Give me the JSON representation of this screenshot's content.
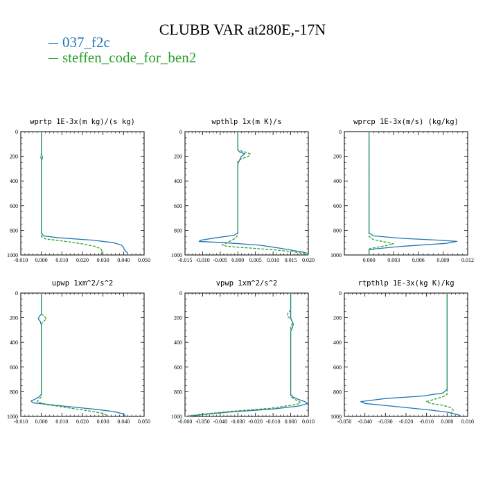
{
  "title": "CLUBB VAR at280E,-17N",
  "legend": [
    {
      "label": "037_f2c",
      "color": "#1f77b4"
    },
    {
      "label": "steffen_code_for_ben2",
      "color": "#2ca02c"
    }
  ],
  "chart_data": [
    {
      "type": "line",
      "title": "wprtp  1E-3x(m kg)/(s kg)",
      "xlim": [
        -0.01,
        0.05
      ],
      "ylim": [
        1000,
        0
      ],
      "xticks": [
        -0.01,
        0.0,
        0.01,
        0.02,
        0.03,
        0.04,
        0.05
      ],
      "xtick_labels": [
        "-0.010",
        "0.000",
        "0.010",
        "0.020",
        "0.030",
        "0.040",
        "0.050"
      ],
      "yticks": [
        0,
        200,
        400,
        600,
        800,
        1000
      ],
      "ytick_labels": [
        "0",
        "200",
        "400",
        "600",
        "800",
        "1000"
      ],
      "series": [
        {
          "name": "037_f2c",
          "points": [
            [
              0,
              0
            ],
            [
              0,
              190
            ],
            [
              0.0005,
              200
            ],
            [
              0.0005,
              220
            ],
            [
              0,
              230
            ],
            [
              0,
              820
            ],
            [
              0.001,
              845
            ],
            [
              0.008,
              860
            ],
            [
              0.025,
              880
            ],
            [
              0.035,
              900
            ],
            [
              0.039,
              920
            ],
            [
              0.04,
              940
            ],
            [
              0.0405,
              960
            ],
            [
              0.042,
              985
            ],
            [
              0.042,
              1000
            ]
          ]
        },
        {
          "name": "steffen_code_for_ben2",
          "points": [
            [
              0,
              0
            ],
            [
              0,
              180
            ],
            [
              -0.0005,
              200
            ],
            [
              0,
              220
            ],
            [
              0,
              850
            ],
            [
              0.002,
              870
            ],
            [
              0.012,
              890
            ],
            [
              0.02,
              910
            ],
            [
              0.026,
              930
            ],
            [
              0.029,
              950
            ],
            [
              0.0295,
              970
            ],
            [
              0.029,
              1000
            ]
          ]
        }
      ]
    },
    {
      "type": "line",
      "title": "wpthlp  1x(m K)/s",
      "xlim": [
        -0.015,
        0.02
      ],
      "ylim": [
        1000,
        0
      ],
      "xticks": [
        -0.015,
        -0.01,
        -0.005,
        0.0,
        0.005,
        0.01,
        0.015,
        0.02
      ],
      "xtick_labels": [
        "-0.015",
        "-0.010",
        "-0.005",
        "0.000",
        "0.005",
        "0.010",
        "0.015",
        "0.020"
      ],
      "yticks": [
        0,
        200,
        400,
        600,
        800,
        1000
      ],
      "ytick_labels": [
        "0",
        "200",
        "400",
        "600",
        "800",
        "1000"
      ],
      "series": [
        {
          "name": "037_f2c",
          "points": [
            [
              0,
              0
            ],
            [
              0,
              150
            ],
            [
              0.0005,
              165
            ],
            [
              0.002,
              180
            ],
            [
              0.001,
              200
            ],
            [
              0.0005,
              230
            ],
            [
              0,
              260
            ],
            [
              0,
              820
            ],
            [
              -0.001,
              840
            ],
            [
              -0.006,
              860
            ],
            [
              -0.0105,
              880
            ],
            [
              -0.011,
              890
            ],
            [
              -0.004,
              900
            ],
            [
              0.006,
              920
            ],
            [
              0.012,
              945
            ],
            [
              0.016,
              965
            ],
            [
              0.019,
              980
            ],
            [
              0.02,
              990
            ],
            [
              0.02,
              1000
            ]
          ]
        },
        {
          "name": "steffen_code_for_ben2",
          "points": [
            [
              0,
              0
            ],
            [
              0,
              150
            ],
            [
              0.002,
              165
            ],
            [
              0.0035,
              180
            ],
            [
              0.003,
              200
            ],
            [
              0.001,
              220
            ],
            [
              0,
              240
            ],
            [
              0,
              840
            ],
            [
              -0.001,
              870
            ],
            [
              -0.003,
              900
            ],
            [
              -0.0045,
              920
            ],
            [
              -0.003,
              930
            ],
            [
              0.004,
              945
            ],
            [
              0.011,
              960
            ],
            [
              0.016,
              975
            ],
            [
              0.019,
              990
            ],
            [
              0.02,
              1000
            ]
          ]
        }
      ]
    },
    {
      "type": "line",
      "title": "wprcp  1E-3x(m/s) (kg/kg)",
      "xlim": [
        -0.003,
        0.012
      ],
      "ylim": [
        1000,
        0
      ],
      "xticks": [
        0.0,
        0.003,
        0.006,
        0.009,
        0.012
      ],
      "xtick_labels": [
        "0.000",
        "0.003",
        "0.006",
        "0.009",
        "0.012"
      ],
      "yticks": [
        0,
        200,
        400,
        600,
        800,
        1000
      ],
      "ytick_labels": [
        "0",
        "200",
        "400",
        "600",
        "800",
        "1000"
      ],
      "series": [
        {
          "name": "037_f2c",
          "points": [
            [
              0,
              0
            ],
            [
              0,
              820
            ],
            [
              0.0005,
              845
            ],
            [
              0.004,
              865
            ],
            [
              0.0085,
              880
            ],
            [
              0.0107,
              890
            ],
            [
              0.0095,
              905
            ],
            [
              0.004,
              930
            ],
            [
              0.0008,
              950
            ],
            [
              0,
              960
            ],
            [
              0,
              1000
            ]
          ]
        },
        {
          "name": "steffen_code_for_ben2",
          "points": [
            [
              0,
              0
            ],
            [
              0,
              850
            ],
            [
              0.0005,
              875
            ],
            [
              0.002,
              895
            ],
            [
              0.003,
              910
            ],
            [
              0.002,
              925
            ],
            [
              0.0008,
              940
            ],
            [
              0,
              950
            ],
            [
              0,
              1000
            ]
          ]
        }
      ]
    },
    {
      "type": "line",
      "title": "upwp  1xm^2/s^2",
      "xlim": [
        -0.01,
        0.05
      ],
      "ylim": [
        1000,
        0
      ],
      "xticks": [
        -0.01,
        0.0,
        0.01,
        0.02,
        0.03,
        0.04,
        0.05
      ],
      "xtick_labels": [
        "-0.010",
        "0.000",
        "0.010",
        "0.020",
        "0.030",
        "0.040",
        "0.050"
      ],
      "yticks": [
        0,
        200,
        400,
        600,
        800,
        1000
      ],
      "ytick_labels": [
        "0",
        "200",
        "400",
        "600",
        "800",
        "1000"
      ],
      "series": [
        {
          "name": "037_f2c",
          "points": [
            [
              0,
              0
            ],
            [
              0,
              170
            ],
            [
              -0.001,
              190
            ],
            [
              -0.0015,
              210
            ],
            [
              -0.0005,
              230
            ],
            [
              0,
              260
            ],
            [
              0,
              820
            ],
            [
              -0.001,
              840
            ],
            [
              -0.003,
              860
            ],
            [
              -0.005,
              875
            ],
            [
              -0.004,
              890
            ],
            [
              0.01,
              915
            ],
            [
              0.025,
              940
            ],
            [
              0.035,
              960
            ],
            [
              0.04,
              980
            ],
            [
              0.041,
              1000
            ]
          ]
        },
        {
          "name": "steffen_code_for_ben2",
          "points": [
            [
              0,
              0
            ],
            [
              0,
              170
            ],
            [
              0.0015,
              190
            ],
            [
              0.0025,
              210
            ],
            [
              0.001,
              230
            ],
            [
              0,
              250
            ],
            [
              0,
              840
            ],
            [
              -0.001,
              860
            ],
            [
              -0.002,
              880
            ],
            [
              0.003,
              905
            ],
            [
              0.013,
              930
            ],
            [
              0.023,
              955
            ],
            [
              0.03,
              975
            ],
            [
              0.033,
              1000
            ]
          ]
        }
      ]
    },
    {
      "type": "line",
      "title": "vpwp  1xm^2/s^2",
      "xlim": [
        -0.06,
        0.01
      ],
      "ylim": [
        1000,
        0
      ],
      "xticks": [
        -0.06,
        -0.05,
        -0.04,
        -0.03,
        -0.02,
        -0.01,
        0.0,
        0.01
      ],
      "xtick_labels": [
        "-0.060",
        "-0.050",
        "-0.040",
        "-0.030",
        "-0.020",
        "-0.010",
        "0.000",
        "0.010"
      ],
      "yticks": [
        0,
        200,
        400,
        600,
        800,
        1000
      ],
      "ytick_labels": [
        "0",
        "200",
        "400",
        "600",
        "800",
        "1000"
      ],
      "series": [
        {
          "name": "037_f2c",
          "points": [
            [
              0,
              0
            ],
            [
              0,
              200
            ],
            [
              0.0005,
              220
            ],
            [
              0.0015,
              250
            ],
            [
              0.001,
              280
            ],
            [
              0,
              310
            ],
            [
              0,
              820
            ],
            [
              0.001,
              840
            ],
            [
              0.004,
              860
            ],
            [
              0.008,
              880
            ],
            [
              0.0095,
              895
            ],
            [
              0.005,
              915
            ],
            [
              -0.01,
              940
            ],
            [
              -0.035,
              965
            ],
            [
              -0.05,
              985
            ],
            [
              -0.058,
              1000
            ]
          ]
        },
        {
          "name": "steffen_code_for_ben2",
          "points": [
            [
              0,
              0
            ],
            [
              0,
              140
            ],
            [
              -0.0015,
              160
            ],
            [
              -0.002,
              185
            ],
            [
              0,
              210
            ],
            [
              0.001,
              235
            ],
            [
              0.0005,
              260
            ],
            [
              0,
              280
            ],
            [
              0,
              840
            ],
            [
              0.002,
              860
            ],
            [
              0.005,
              880
            ],
            [
              0.0055,
              895
            ],
            [
              0,
              910
            ],
            [
              -0.012,
              935
            ],
            [
              -0.035,
              960
            ],
            [
              -0.052,
              985
            ],
            [
              -0.06,
              1000
            ]
          ]
        }
      ]
    },
    {
      "type": "line",
      "title": "rtpthlp  1E-3x(kg K)/kg",
      "xlim": [
        -0.05,
        0.01
      ],
      "ylim": [
        1000,
        0
      ],
      "xticks": [
        -0.05,
        -0.04,
        -0.03,
        -0.02,
        -0.01,
        0.0,
        0.01
      ],
      "xtick_labels": [
        "-0.050",
        "-0.040",
        "-0.030",
        "-0.020",
        "-0.010",
        "0.000",
        "0.010"
      ],
      "yticks": [
        0,
        200,
        400,
        600,
        800,
        1000
      ],
      "ytick_labels": [
        "0",
        "200",
        "400",
        "600",
        "800",
        "1000"
      ],
      "series": [
        {
          "name": "037_f2c",
          "points": [
            [
              0,
              0
            ],
            [
              0,
              780
            ],
            [
              -0.002,
              810
            ],
            [
              -0.012,
              835
            ],
            [
              -0.03,
              855
            ],
            [
              -0.042,
              880
            ],
            [
              -0.04,
              895
            ],
            [
              -0.025,
              920
            ],
            [
              -0.01,
              945
            ],
            [
              0,
              965
            ],
            [
              0.005,
              985
            ],
            [
              0.007,
              1000
            ]
          ]
        },
        {
          "name": "steffen_code_for_ben2",
          "points": [
            [
              0,
              0
            ],
            [
              0,
              820
            ],
            [
              -0.002,
              840
            ],
            [
              -0.006,
              860
            ],
            [
              -0.01,
              880
            ],
            [
              -0.008,
              895
            ],
            [
              -0.002,
              910
            ],
            [
              0.002,
              930
            ],
            [
              0.003,
              950
            ],
            [
              0.002,
              975
            ],
            [
              0.002,
              1000
            ]
          ]
        }
      ]
    }
  ]
}
